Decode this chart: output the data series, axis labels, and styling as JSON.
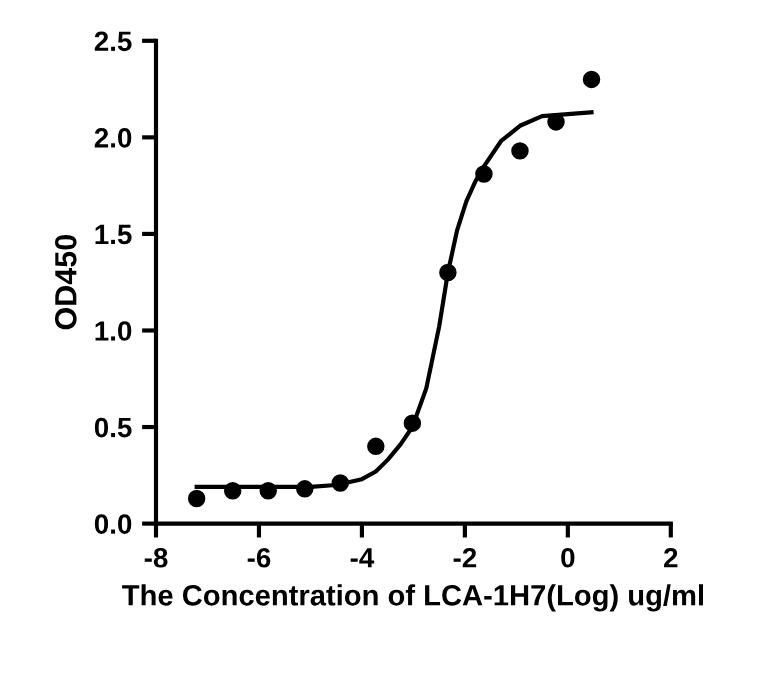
{
  "chart_data": {
    "type": "scatter",
    "xlabel": "The Concentration of LCA-1H7(Log) ug/ml",
    "ylabel": "OD450",
    "xlim": [
      -8,
      2
    ],
    "xticks": [
      -8,
      -6,
      -4,
      -2,
      0,
      2
    ],
    "ylim": [
      0,
      2.5
    ],
    "yticks": [
      {
        "value": 0,
        "label": "0.0"
      },
      0.5,
      {
        "value": 1,
        "label": "1.0"
      },
      1.5,
      {
        "value": 2,
        "label": "2.0"
      },
      2.5
    ],
    "grid": false,
    "legend": false,
    "series": [
      {
        "color": "#000000",
        "marker": "circle",
        "x": [
          -7.21,
          -6.51,
          -5.82,
          -5.11,
          -4.42,
          -3.73,
          -3.02,
          -2.33,
          -1.63,
          -0.93,
          -0.23,
          0.46
        ],
        "values": [
          0.13,
          0.17,
          0.17,
          0.18,
          0.21,
          0.4,
          0.52,
          1.3,
          1.81,
          1.93,
          2.08,
          2.3
        ]
      },
      {
        "type": "line",
        "color": "#000000",
        "marker": "none",
        "line_style": "solid",
        "x": [
          -7.21,
          -5,
          -4.5,
          -4,
          -3.73,
          -3.5,
          -3.25,
          -3.02,
          -2.75,
          -2.5,
          -2.33,
          -2.15,
          -1.97,
          -1.8,
          -1.63,
          -1.3,
          -0.93,
          -0.5,
          0,
          0.46
        ],
        "values": [
          0.19,
          0.19,
          0.2,
          0.23,
          0.27,
          0.33,
          0.41,
          0.5,
          0.7,
          1.02,
          1.3,
          1.52,
          1.67,
          1.77,
          1.85,
          1.98,
          2.06,
          2.11,
          2.12,
          2.13
        ]
      }
    ]
  }
}
